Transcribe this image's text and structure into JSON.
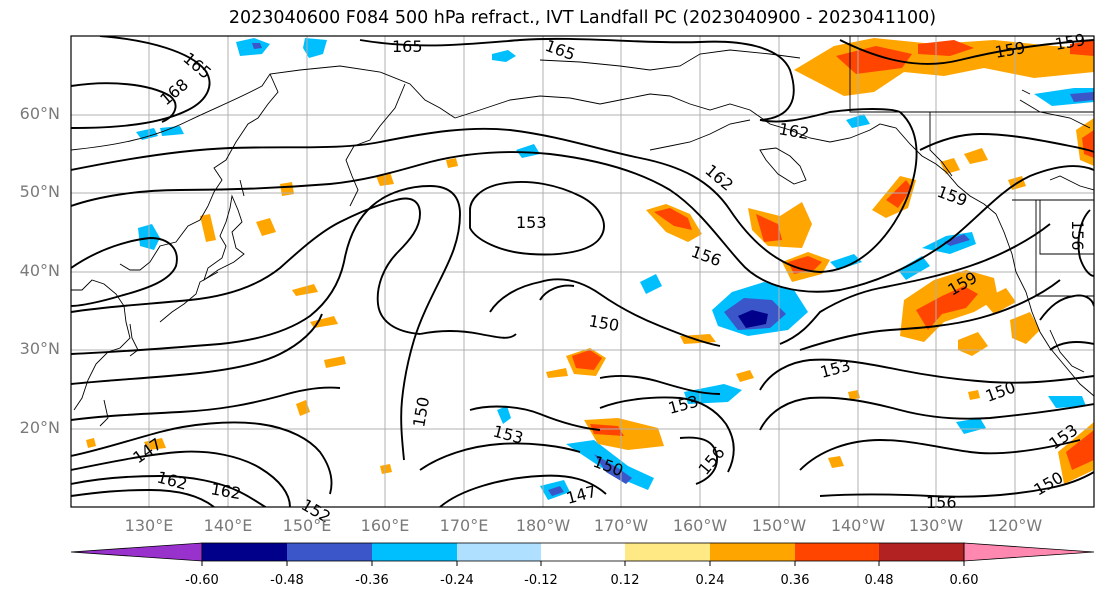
{
  "title": "2023040600 F084 500 hPa refract., IVT Landfall PC (2023040900 - 2023041100)",
  "latitude_labels": [
    "60°N",
    "50°N",
    "40°N",
    "30°N",
    "20°N"
  ],
  "longitude_labels": [
    "130°E",
    "140°E",
    "150°E",
    "160°E",
    "170°E",
    "180°W",
    "170°W",
    "160°W",
    "150°W",
    "140°W",
    "130°W",
    "120°W"
  ],
  "contour_labels": [
    "165",
    "165",
    "165",
    "168",
    "159",
    "159",
    "162",
    "162",
    "159",
    "153",
    "156",
    "156",
    "159",
    "150",
    "153",
    "150",
    "150",
    "153",
    "153",
    "150",
    "156",
    "147",
    "147",
    "162",
    "162",
    "152",
    "156",
    "150",
    "153"
  ],
  "colorbar": {
    "ticks": [
      "-0.60",
      "-0.48",
      "-0.36",
      "-0.24",
      "-0.12",
      "0.12",
      "0.24",
      "0.36",
      "0.48",
      "0.60"
    ],
    "colors": [
      "#9932cc",
      "#00008b",
      "#3a56c8",
      "#00bfff",
      "#b0e0ff",
      "#ffffff",
      "#ffe985",
      "#ffa500",
      "#ff4500",
      "#b22222",
      "#ff88b0"
    ]
  }
}
